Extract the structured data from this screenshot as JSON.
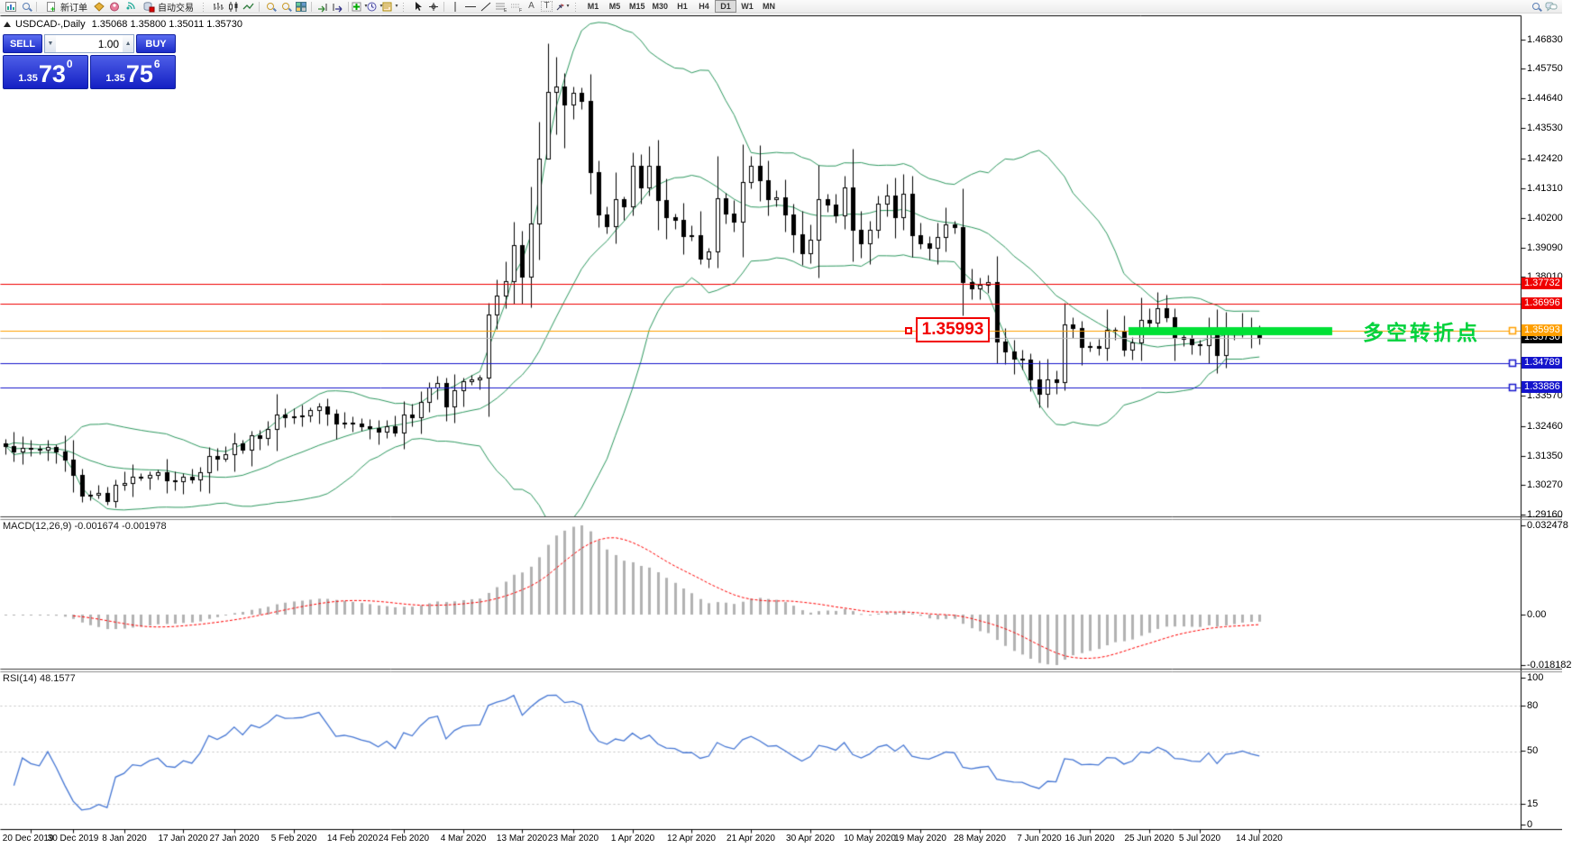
{
  "toolbar": {
    "new_order_label": "新订单",
    "autotrading_label": "自动交易",
    "text_tool_glyph": "A",
    "label_tool_glyph": "T",
    "timeframes": [
      "M1",
      "M5",
      "M15",
      "M30",
      "H1",
      "H4",
      "D1",
      "W1",
      "MN"
    ],
    "active_timeframe": "D1"
  },
  "symbol_line": {
    "symbol": "USDCAD-,Daily",
    "ohlc": "1.35068 1.35800 1.35011 1.35730"
  },
  "trade_panel": {
    "sell_label": "SELL",
    "buy_label": "BUY",
    "volume": "1.00",
    "sell_small": "1.35",
    "sell_big": "73",
    "sell_sup": "0",
    "buy_small": "1.35",
    "buy_big": "75",
    "buy_sup": "6"
  },
  "chart_data": {
    "type": "candlestick",
    "symbol": "USDCAD-",
    "timeframe": "Daily",
    "y_ticks": [
      "1.46830",
      "1.45750",
      "1.44640",
      "1.43530",
      "1.42420",
      "1.41310",
      "1.40200",
      "1.39090",
      "1.38010",
      "1.33570",
      "1.32460",
      "1.31350",
      "1.30270",
      "1.29160"
    ],
    "x_labels": [
      {
        "t": "20 Dec 2019",
        "i": 3
      },
      {
        "t": "30 Dec 2019",
        "i": 8
      },
      {
        "t": "8 Jan 2020",
        "i": 14
      },
      {
        "t": "17 Jan 2020",
        "i": 21
      },
      {
        "t": "27 Jan 2020",
        "i": 27
      },
      {
        "t": "5 Feb 2020",
        "i": 34
      },
      {
        "t": "14 Feb 2020",
        "i": 41
      },
      {
        "t": "24 Feb 2020",
        "i": 47
      },
      {
        "t": "4 Mar 2020",
        "i": 54
      },
      {
        "t": "13 Mar 2020",
        "i": 61
      },
      {
        "t": "23 Mar 2020",
        "i": 67
      },
      {
        "t": "1 Apr 2020",
        "i": 74
      },
      {
        "t": "12 Apr 2020",
        "i": 81
      },
      {
        "t": "21 Apr 2020",
        "i": 88
      },
      {
        "t": "30 Apr 2020",
        "i": 95
      },
      {
        "t": "10 May 2020",
        "i": 102
      },
      {
        "t": "19 May 2020",
        "i": 108
      },
      {
        "t": "28 May 2020",
        "i": 115
      },
      {
        "t": "7 Jun 2020",
        "i": 122
      },
      {
        "t": "16 Jun 2020",
        "i": 128
      },
      {
        "t": "25 Jun 2020",
        "i": 135
      },
      {
        "t": "5 Jul 2020",
        "i": 141
      },
      {
        "t": "14 Jul 2020",
        "i": 148
      }
    ],
    "closes": [
      1.3172,
      1.315,
      1.3165,
      1.316,
      1.3158,
      1.3168,
      1.3152,
      1.3122,
      1.3063,
      1.2988,
      1.299,
      1.2996,
      1.2966,
      1.3025,
      1.3034,
      1.3056,
      1.3052,
      1.3065,
      1.3072,
      1.3044,
      1.304,
      1.3056,
      1.3048,
      1.3075,
      1.3135,
      1.3124,
      1.3142,
      1.318,
      1.3158,
      1.321,
      1.3202,
      1.3233,
      1.3288,
      1.3278,
      1.328,
      1.3284,
      1.3304,
      1.332,
      1.329,
      1.3253,
      1.3258,
      1.3253,
      1.3244,
      1.3238,
      1.3224,
      1.3244,
      1.3222,
      1.3288,
      1.3278,
      1.3334,
      1.3388,
      1.3404,
      1.332,
      1.3378,
      1.3412,
      1.342,
      1.3424,
      1.366,
      1.373,
      1.3786,
      1.392,
      1.38,
      1.3998,
      1.424,
      1.449,
      1.4508,
      1.444,
      1.4486,
      1.4456,
      1.419,
      1.4034,
      1.3988,
      1.4088,
      1.4062,
      1.4214,
      1.4134,
      1.4212,
      1.4086,
      1.4022,
      1.4014,
      1.3952,
      1.3954,
      1.3868,
      1.3896,
      1.4094,
      1.4036,
      1.4006,
      1.4154,
      1.4214,
      1.416,
      1.4088,
      1.4096,
      1.4034,
      1.3958,
      1.3888,
      1.394,
      1.409,
      1.4068,
      1.403,
      1.4134,
      1.3976,
      1.3924,
      1.3976,
      1.4074,
      1.4104,
      1.4024,
      1.4108,
      1.3954,
      1.3924,
      1.391,
      1.395,
      1.3994,
      1.3984,
      1.378,
      1.3756,
      1.377,
      1.378,
      1.356,
      1.3524,
      1.3496,
      1.3494,
      1.342,
      1.3364,
      1.342,
      1.341,
      1.3624,
      1.361,
      1.354,
      1.3544,
      1.3536,
      1.3604,
      1.36,
      1.353,
      1.3556,
      1.364,
      1.363,
      1.3684,
      1.365,
      1.3576,
      1.357,
      1.355,
      1.3546,
      1.361,
      1.351,
      1.3586,
      1.3596,
      1.3614,
      1.359,
      1.3573
    ],
    "high_overrides": {
      "57": 1.3705,
      "64": 1.4668,
      "65": 1.462,
      "66": 1.456,
      "67": 1.451,
      "74": 1.4265
    },
    "low_overrides": {
      "12": 1.2952,
      "64": 1.4378,
      "65": 1.433,
      "66": 1.428,
      "117": 1.348,
      "122": 1.3315
    },
    "price_lines": [
      {
        "label": "1.37732",
        "price": 1.37732,
        "color": "#f00000",
        "badge_bg": "#f00000",
        "handle": false,
        "current": false
      },
      {
        "label": "1.36996",
        "price": 1.36996,
        "color": "#f00000",
        "badge_bg": "#f00000",
        "handle": false,
        "current": false
      },
      {
        "label": "1.35993",
        "price": 1.35993,
        "color": "#ff9f00",
        "badge_bg": "#ff9f00",
        "handle": true,
        "current": false
      },
      {
        "label": "1.35730",
        "price": 1.3573,
        "color": "#b8b8b8",
        "badge_bg": "#000000",
        "handle": false,
        "current": true
      },
      {
        "label": "1.34789",
        "price": 1.34789,
        "color": "#1414cc",
        "badge_bg": "#1414cc",
        "handle": true,
        "current": false
      },
      {
        "label": "1.33886",
        "price": 1.33886,
        "color": "#1414cc",
        "badge_bg": "#1414cc",
        "handle": true,
        "current": false
      }
    ],
    "highlight_segment": {
      "x1": 1252,
      "x2": 1478,
      "price": 1.35993,
      "thickness": 9,
      "color": "#00e135"
    },
    "annotations": {
      "price_callout": "1.35993",
      "turning_point": "多空转折点"
    },
    "indicators": {
      "bollinger": {
        "period": 20,
        "deviation": 2,
        "color": "#2e9960"
      },
      "macd": {
        "name": "MACD(12,26,9)",
        "value1": "-0.001674",
        "value2": "-0.001978",
        "scale_labels": [
          "0.032478",
          "0.00",
          "-0.018182"
        ],
        "hist_color": "#b2b2b2",
        "signal_color": "#ff0000"
      },
      "rsi": {
        "name": "RSI(14)",
        "value": "48.1577",
        "scale_labels": [
          "100",
          "80",
          "50",
          "15",
          "0"
        ],
        "levels": [
          80,
          50,
          15
        ],
        "color": "#4677d4",
        "level_color": "#c4c4c4"
      }
    }
  }
}
